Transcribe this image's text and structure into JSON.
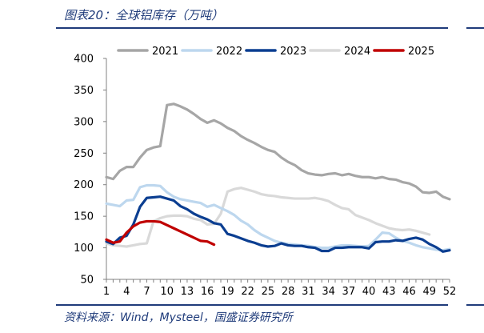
{
  "figure": {
    "title": "图表20：全球铝库存（万吨）",
    "source": "资料来源：Wind，Mysteel，国盛证券研究所"
  },
  "chart_data": {
    "type": "line",
    "title": "全球铝库存（万吨）",
    "xlabel": "",
    "ylabel": "",
    "ylim": [
      50,
      400
    ],
    "yticks": [
      50,
      100,
      150,
      200,
      250,
      300,
      350,
      400
    ],
    "xlim": [
      1,
      52
    ],
    "xticks": [
      1,
      4,
      7,
      10,
      13,
      16,
      19,
      22,
      25,
      28,
      31,
      34,
      37,
      40,
      43,
      46,
      49,
      52
    ],
    "legend_position": "top",
    "grid": false,
    "series": [
      {
        "name": "2021",
        "color": "#a6a6a6",
        "values": [
          212,
          209,
          222,
          228,
          228,
          243,
          255,
          259,
          261,
          326,
          328,
          324,
          319,
          312,
          304,
          298,
          302,
          297,
          290,
          285,
          277,
          271,
          266,
          260,
          255,
          252,
          243,
          236,
          231,
          223,
          218,
          216,
          215,
          217,
          218,
          215,
          217,
          214,
          212,
          212,
          210,
          212,
          209,
          208,
          204,
          202,
          197,
          188,
          187,
          189,
          181,
          177
        ]
      },
      {
        "name": "2022",
        "color": "#bdd7ee",
        "values": [
          170,
          168,
          166,
          175,
          176,
          196,
          199,
          199,
          198,
          188,
          181,
          177,
          175,
          173,
          171,
          165,
          168,
          163,
          158,
          152,
          143,
          137,
          128,
          121,
          116,
          111,
          108,
          106,
          105,
          104,
          103,
          101,
          100,
          100,
          102,
          104,
          104,
          103,
          102,
          103,
          113,
          124,
          123,
          116,
          111,
          108,
          104,
          101,
          99,
          97,
          96,
          98
        ]
      },
      {
        "name": "2023",
        "color": "#0b3e91",
        "values": [
          110,
          106,
          116,
          119,
          137,
          165,
          179,
          180,
          181,
          178,
          175,
          166,
          161,
          154,
          149,
          145,
          139,
          137,
          122,
          119,
          115,
          111,
          108,
          104,
          102,
          103,
          107,
          104,
          103,
          103,
          101,
          100,
          95,
          95,
          100,
          100,
          101,
          101,
          101,
          99,
          109,
          110,
          110,
          112,
          111,
          114,
          116,
          113,
          106,
          101,
          94,
          96
        ]
      },
      {
        "name": "2024",
        "color": "#d9d9d9",
        "values": [
          107,
          104,
          103,
          102,
          104,
          106,
          107,
          142,
          147,
          150,
          151,
          151,
          150,
          146,
          144,
          137,
          138,
          154,
          189,
          193,
          195,
          192,
          189,
          185,
          183,
          182,
          180,
          179,
          178,
          178,
          178,
          179,
          177,
          174,
          168,
          163,
          161,
          152,
          148,
          144,
          139,
          135,
          131,
          129,
          128,
          129,
          127,
          124,
          121
        ]
      },
      {
        "name": "2025",
        "color": "#c00000",
        "values": [
          113,
          108,
          110,
          124,
          134,
          140,
          142,
          142,
          141,
          136,
          131,
          126,
          121,
          116,
          111,
          110,
          105
        ]
      }
    ]
  }
}
